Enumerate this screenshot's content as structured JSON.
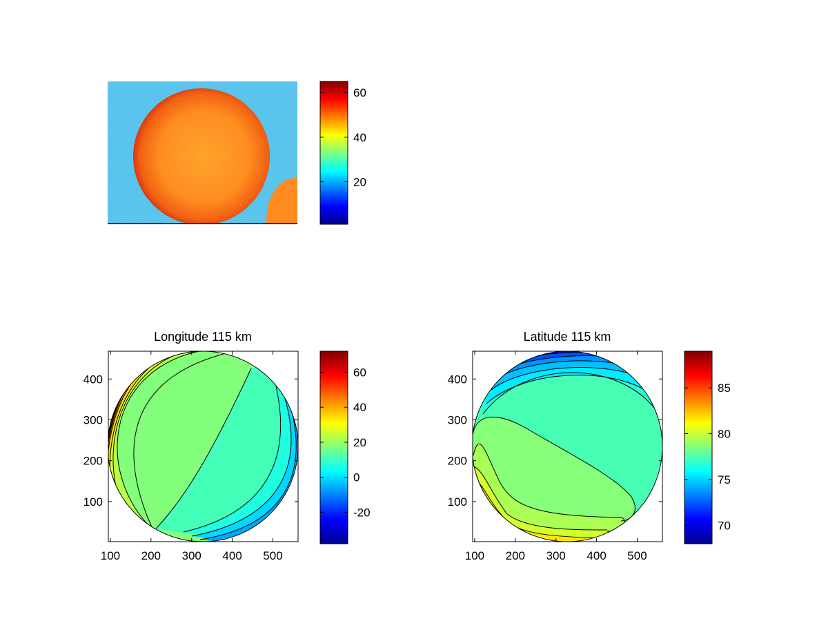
{
  "figure": {
    "background": "#ffffff",
    "colormap": "jet"
  },
  "chart_data": [
    {
      "id": "image",
      "type": "heatmap",
      "title": "",
      "xlabel": "",
      "ylabel": "",
      "axes_visible": false,
      "content": "camera image of a bright disc",
      "header_text": "",
      "colorbar": {
        "min": 1,
        "max": 65,
        "ticks": [
          20,
          40,
          60
        ],
        "tick_labels": [
          "20",
          "40",
          "60"
        ]
      }
    },
    {
      "id": "longitude",
      "type": "heatmap",
      "title": "Longitude 115 km",
      "xlabel": "",
      "ylabel": "",
      "xlim": [
        95,
        562
      ],
      "ylim": [
        2,
        468
      ],
      "xticks": [
        100,
        200,
        300,
        400,
        500
      ],
      "xtick_labels": [
        "100",
        "200",
        "300",
        "400",
        "500"
      ],
      "yticks": [
        100,
        200,
        300,
        400
      ],
      "ytick_labels": [
        "100",
        "200",
        "300",
        "400"
      ],
      "grid": false,
      "colorbar": {
        "min": -38,
        "max": 72,
        "ticks": [
          -20,
          0,
          20,
          40,
          60
        ],
        "tick_labels": [
          "-20",
          "0",
          "20",
          "40",
          "60"
        ]
      },
      "contour_levels": [
        -30,
        -20,
        -10,
        0,
        10,
        20,
        30,
        40,
        50,
        60,
        70
      ]
    },
    {
      "id": "latitude",
      "type": "heatmap",
      "title": "Latitude 115 km",
      "xlabel": "",
      "ylabel": "",
      "xlim": [
        95,
        562
      ],
      "ylim": [
        2,
        468
      ],
      "xticks": [
        100,
        200,
        300,
        400,
        500
      ],
      "xtick_labels": [
        "100",
        "200",
        "300",
        "400",
        "500"
      ],
      "yticks": [
        100,
        200,
        300,
        400
      ],
      "ytick_labels": [
        "100",
        "200",
        "300",
        "400"
      ],
      "grid": false,
      "colorbar": {
        "min": 68,
        "max": 89,
        "ticks": [
          70,
          75,
          80,
          85
        ],
        "tick_labels": [
          "70",
          "75",
          "80",
          "85"
        ]
      },
      "contour_levels": [
        69,
        70,
        71,
        72,
        73,
        74,
        75,
        76,
        77,
        78,
        79,
        80,
        81,
        82,
        83
      ]
    }
  ]
}
